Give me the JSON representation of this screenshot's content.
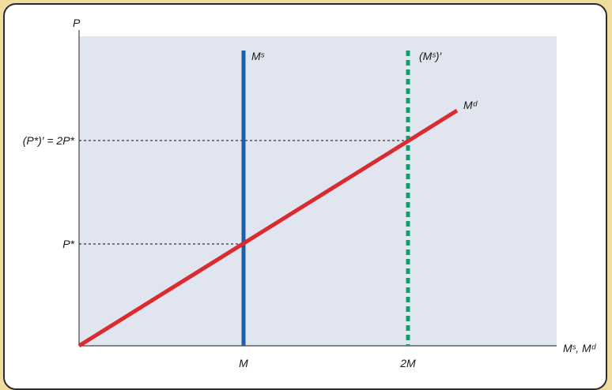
{
  "diagram": {
    "y_axis_label": "P",
    "x_axis_label": "Mˢ, Mᵈ",
    "labels": {
      "ms": "Mˢ",
      "ms_prime": "(Mˢ)′",
      "md": "Mᵈ",
      "p_star": "P*",
      "p_star_prime": "(P*)′ = 2P*",
      "m": "M",
      "two_m": "2M"
    },
    "colors": {
      "plot_background": "#e0e5ef",
      "money_supply": "#1f5fa8",
      "money_supply_new": "#1a9a6c",
      "money_demand": "#d92b30",
      "frame_border": "#f0dc9c"
    }
  }
}
